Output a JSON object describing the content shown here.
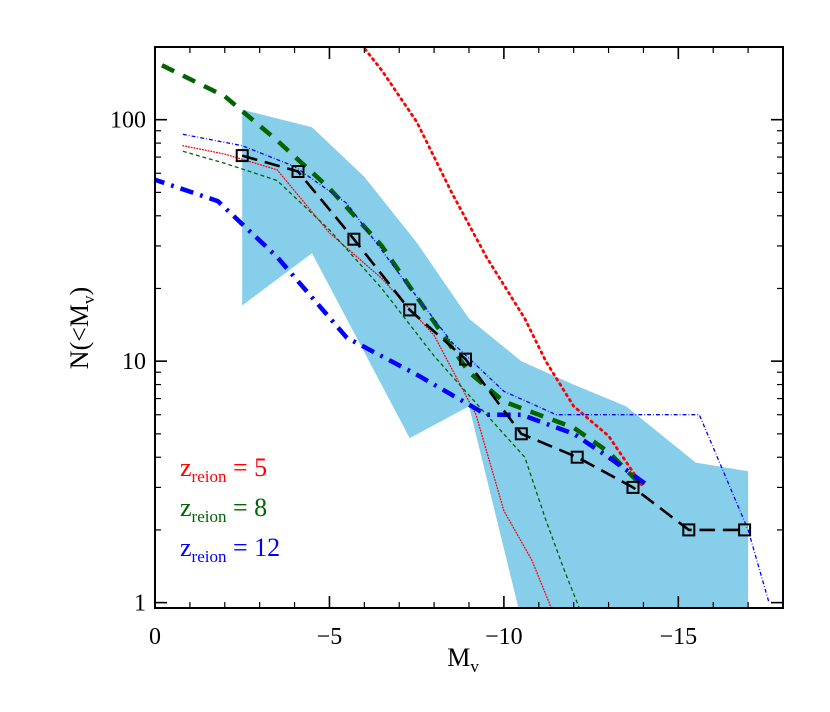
{
  "chart_data": {
    "type": "line",
    "xlabel": {
      "main": "M",
      "sub": "v"
    },
    "ylabel": {
      "pre": "N(<M",
      "sub": "v",
      "post": ")"
    },
    "xlim": [
      0,
      -18
    ],
    "ylim": [
      0.95,
      200
    ],
    "yscale": "log",
    "grid": false,
    "xticks": [
      0,
      -5,
      -10,
      -15
    ],
    "xtick_labels": [
      "0",
      "−5",
      "−10",
      "−15"
    ],
    "yticks": [
      1,
      10,
      100
    ],
    "ytick_labels": [
      "1",
      "10",
      "100"
    ],
    "legend": {
      "placement": "bottom-left",
      "entries": [
        {
          "pre": "z",
          "sub": "reion",
          "post": " = 5",
          "color": "#ff0000"
        },
        {
          "pre": "z",
          "sub": "reion",
          "post": " = 8",
          "color": "#006400"
        },
        {
          "pre": "z",
          "sub": "reion",
          "post": " = 12",
          "color": "#0000ff"
        }
      ]
    },
    "band": {
      "color": "#87ceeb",
      "upper": [
        [
          -2.5,
          110
        ],
        [
          -4.5,
          93
        ],
        [
          -6.0,
          58
        ],
        [
          -7.5,
          31
        ],
        [
          -9.0,
          15
        ],
        [
          -10.5,
          10
        ],
        [
          -12.0,
          8
        ],
        [
          -13.5,
          6.5
        ],
        [
          -15.5,
          3.8
        ],
        [
          -17.0,
          3.5
        ]
      ],
      "lower": [
        [
          -17.0,
          0.85
        ],
        [
          -10.5,
          0.85
        ],
        [
          -9.0,
          6.5
        ],
        [
          -7.3,
          4.8
        ],
        [
          -4.5,
          28
        ],
        [
          -2.5,
          17
        ]
      ]
    },
    "series": [
      {
        "color": "#ff0000",
        "style": "dotted",
        "width": 2.8,
        "points": [
          [
            -5.8,
            215
          ],
          [
            -6.5,
            160
          ],
          [
            -7.5,
            98
          ],
          [
            -8.5,
            50
          ],
          [
            -9.5,
            27
          ],
          [
            -10.6,
            15
          ],
          [
            -11.2,
            10
          ],
          [
            -12.0,
            6.5
          ],
          [
            -13.0,
            4.9
          ],
          [
            -14.0,
            3.0
          ]
        ]
      },
      {
        "color": "#ff0000",
        "style": "dotted",
        "width": 1.3,
        "points": [
          [
            -0.8,
            78
          ],
          [
            -2.0,
            72
          ],
          [
            -3.5,
            62
          ],
          [
            -5.0,
            34
          ],
          [
            -6.5,
            22
          ],
          [
            -8.0,
            12.8
          ],
          [
            -9.2,
            6.0
          ],
          [
            -10.0,
            2.4
          ],
          [
            -10.8,
            1.5
          ],
          [
            -11.4,
            0.92
          ]
        ]
      },
      {
        "color": "#006400",
        "style": "dashed",
        "width": 4.5,
        "points": [
          [
            -0.2,
            168
          ],
          [
            -2.0,
            125
          ],
          [
            -3.5,
            82
          ],
          [
            -5.0,
            52
          ],
          [
            -6.5,
            30
          ],
          [
            -7.8,
            16
          ],
          [
            -9.0,
            9
          ],
          [
            -10.0,
            6.8
          ],
          [
            -11.0,
            6.0
          ],
          [
            -12.0,
            5.3
          ],
          [
            -13.0,
            4.2
          ],
          [
            -14.0,
            3.0
          ]
        ]
      },
      {
        "color": "#006400",
        "style": "dashed",
        "width": 1.3,
        "points": [
          [
            -0.8,
            74
          ],
          [
            -2.0,
            66
          ],
          [
            -3.5,
            56
          ],
          [
            -5.0,
            35
          ],
          [
            -6.5,
            20
          ],
          [
            -8.0,
            10.5
          ],
          [
            -9.5,
            6.0
          ],
          [
            -10.6,
            4.0
          ],
          [
            -11.2,
            2.2
          ],
          [
            -11.7,
            1.4
          ],
          [
            -12.2,
            0.92
          ]
        ]
      },
      {
        "color": "#0000ff",
        "style": "dashdot",
        "width": 4.5,
        "points": [
          [
            0.1,
            57
          ],
          [
            -1.8,
            46
          ],
          [
            -3.5,
            27
          ],
          [
            -5.5,
            12.5
          ],
          [
            -7.5,
            8.8
          ],
          [
            -9.5,
            6.0
          ],
          [
            -10.5,
            6.0
          ],
          [
            -12.0,
            5.0
          ],
          [
            -13.0,
            4.0
          ],
          [
            -14.2,
            3.0
          ]
        ]
      },
      {
        "color": "#0000ff",
        "style": "dashdot",
        "width": 1.3,
        "points": [
          [
            -0.8,
            87
          ],
          [
            -2.5,
            78
          ],
          [
            -4.0,
            64
          ],
          [
            -5.5,
            45
          ],
          [
            -7.0,
            23
          ],
          [
            -8.5,
            12
          ],
          [
            -10.0,
            7.5
          ],
          [
            -11.5,
            6.0
          ],
          [
            -13.5,
            6.0
          ],
          [
            -15.6,
            6.0
          ],
          [
            -17.0,
            2.0
          ],
          [
            -17.6,
            1.0
          ]
        ]
      },
      {
        "color": "#000000",
        "style": "longdash",
        "width": 2.6,
        "markers": "open-square",
        "points": [
          [
            -2.5,
            71
          ],
          [
            -4.1,
            61
          ],
          [
            -5.7,
            32
          ],
          [
            -7.3,
            16.3
          ],
          [
            -8.9,
            10.2
          ],
          [
            -10.5,
            5.0
          ],
          [
            -12.1,
            4.0
          ],
          [
            -13.7,
            3.0
          ],
          [
            -15.3,
            2.0
          ],
          [
            -16.9,
            2.0
          ]
        ]
      }
    ]
  }
}
